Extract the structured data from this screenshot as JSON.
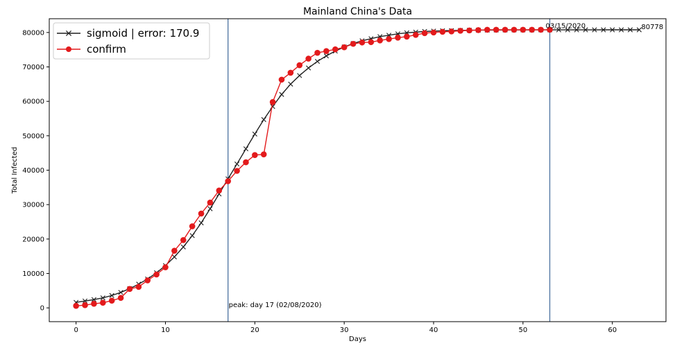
{
  "chart_data": {
    "type": "line",
    "title": "Mainland China's Data",
    "xlabel": "Days",
    "ylabel": "Total Infected",
    "xlim": [
      -3,
      66
    ],
    "ylim": [
      -4000,
      84000
    ],
    "x_ticks": [
      0,
      10,
      20,
      30,
      40,
      50,
      60
    ],
    "y_ticks": [
      0,
      10000,
      20000,
      30000,
      40000,
      50000,
      60000,
      70000,
      80000
    ],
    "grid": false,
    "legend_position": "upper-left",
    "series": [
      {
        "name": "sigmoid | error: 170.9",
        "color": "#1f1f1f",
        "marker": "x",
        "x": [
          0,
          1,
          2,
          3,
          4,
          5,
          6,
          7,
          8,
          9,
          10,
          11,
          12,
          13,
          14,
          15,
          16,
          17,
          18,
          19,
          20,
          21,
          22,
          23,
          24,
          25,
          26,
          27,
          28,
          29,
          30,
          31,
          32,
          33,
          34,
          35,
          36,
          37,
          38,
          39,
          40,
          41,
          42,
          43,
          44,
          45,
          46,
          47,
          48,
          49,
          50,
          51,
          52,
          53,
          54,
          55,
          56,
          57,
          58,
          59,
          60,
          61,
          62,
          63
        ],
        "values": [
          1600,
          2000,
          2400,
          2900,
          3600,
          4500,
          5600,
          6900,
          8400,
          10200,
          12300,
          14800,
          17700,
          21000,
          24700,
          28800,
          33100,
          37500,
          41800,
          46200,
          50500,
          54700,
          58500,
          62000,
          65000,
          67500,
          69700,
          71600,
          73200,
          74600,
          75800,
          76800,
          77600,
          78200,
          78800,
          79200,
          79600,
          79900,
          80100,
          80300,
          80400,
          80500,
          80550,
          80600,
          80650,
          80680,
          80700,
          80720,
          80730,
          80740,
          80750,
          80755,
          80760,
          80765,
          80768,
          80770,
          80772,
          80774,
          80775,
          80776,
          80777,
          80777,
          80778,
          80778
        ]
      },
      {
        "name": "confirm",
        "color": "#e31a1c",
        "marker": "o",
        "x": [
          0,
          1,
          2,
          3,
          4,
          5,
          6,
          7,
          8,
          9,
          10,
          11,
          12,
          13,
          14,
          15,
          16,
          17,
          18,
          19,
          20,
          21,
          22,
          23,
          24,
          25,
          26,
          27,
          28,
          29,
          30,
          31,
          32,
          33,
          34,
          35,
          36,
          37,
          38,
          39,
          40,
          41,
          42,
          43,
          44,
          45,
          46,
          47,
          48,
          49,
          50,
          51,
          52,
          53
        ],
        "values": [
          600,
          800,
          1200,
          1500,
          2100,
          2900,
          5500,
          6100,
          8000,
          9700,
          11800,
          16600,
          19700,
          23700,
          27400,
          30600,
          34100,
          36800,
          39800,
          42300,
          44400,
          44600,
          59800,
          66300,
          68300,
          70500,
          72400,
          74100,
          74600,
          75100,
          75700,
          76700,
          77100,
          77200,
          77700,
          78100,
          78500,
          78800,
          79300,
          79800,
          80000,
          80200,
          80300,
          80500,
          80600,
          80700,
          80800,
          80800,
          80800,
          80800,
          80800,
          80800,
          80800,
          80800
        ]
      }
    ],
    "vlines": [
      {
        "x": 17,
        "color": "#4c72a0",
        "label": "peak: day 17 (02/08/2020)"
      },
      {
        "x": 53,
        "color": "#4c72a0",
        "label": "03/15/2020"
      }
    ],
    "end_annotation": {
      "x": 63,
      "y": 80778,
      "label": "80778"
    }
  }
}
